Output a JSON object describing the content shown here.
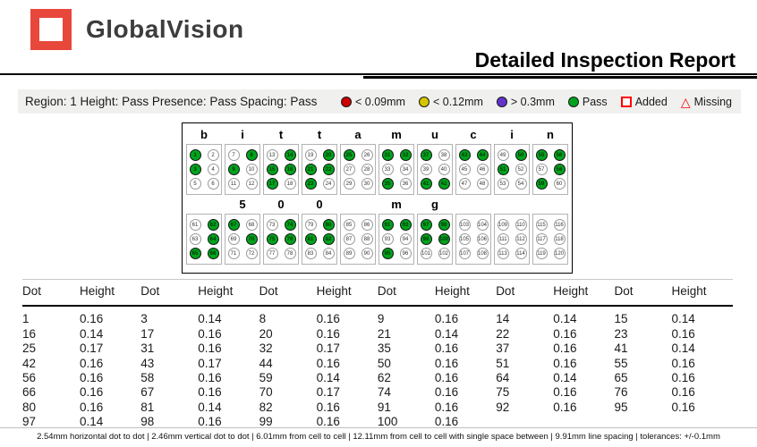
{
  "header": {
    "brand": "GlobalVision",
    "title": "Detailed Inspection Report"
  },
  "region_bar": {
    "text": "Region: 1 Height: Pass Presence: Pass Spacing: Pass",
    "legend": [
      {
        "shape": "circle",
        "color": "#cc0000",
        "label": "< 0.09mm"
      },
      {
        "shape": "circle",
        "color": "#d6c400",
        "label": "< 0.12mm"
      },
      {
        "shape": "circle",
        "color": "#6233cc",
        "label": "> 0.3mm"
      },
      {
        "shape": "circle",
        "color": "#00a41c",
        "label": "Pass"
      },
      {
        "shape": "square",
        "color": "#ff0000",
        "label": "Added"
      },
      {
        "shape": "triangle",
        "color": "#ff0000",
        "label": "Missing",
        "glyph": "△"
      }
    ]
  },
  "braille": {
    "pass_color": "#00a41c",
    "rows": [
      {
        "cells": [
          {
            "label": "b",
            "start": 1,
            "filled": [
              1,
              3
            ]
          },
          {
            "label": "i",
            "start": 7,
            "filled": [
              8,
              9
            ]
          },
          {
            "label": "t",
            "start": 13,
            "filled": [
              14,
              15,
              16,
              17
            ]
          },
          {
            "label": "t",
            "start": 19,
            "filled": [
              20,
              21,
              22,
              23
            ]
          },
          {
            "label": "a",
            "start": 25,
            "filled": [
              25
            ]
          },
          {
            "label": "m",
            "start": 31,
            "filled": [
              31,
              32,
              35
            ]
          },
          {
            "label": "u",
            "start": 37,
            "filled": [
              37,
              41,
              42
            ]
          },
          {
            "label": "c",
            "start": 43,
            "filled": [
              43,
              44
            ]
          },
          {
            "label": "i",
            "start": 49,
            "filled": [
              50,
              51
            ]
          },
          {
            "label": "n",
            "start": 55,
            "filled": [
              55,
              56,
              58,
              59
            ]
          }
        ]
      },
      {
        "cells": [
          {
            "label": "",
            "start": 61,
            "filled": [
              62,
              64,
              65,
              66
            ]
          },
          {
            "label": "5",
            "start": 67,
            "filled": [
              67,
              70
            ]
          },
          {
            "label": "0",
            "start": 73,
            "filled": [
              74,
              75,
              76
            ]
          },
          {
            "label": "0",
            "start": 79,
            "filled": [
              80,
              81,
              82
            ]
          },
          {
            "label": "",
            "start": 85,
            "filled": []
          },
          {
            "label": "m",
            "start": 91,
            "filled": [
              91,
              92,
              95
            ]
          },
          {
            "label": "g",
            "start": 97,
            "filled": [
              97,
              98,
              99,
              100
            ]
          },
          {
            "label": "",
            "start": 103,
            "filled": []
          },
          {
            "label": "",
            "start": 109,
            "filled": []
          },
          {
            "label": "",
            "start": 115,
            "filled": []
          }
        ]
      }
    ]
  },
  "table": {
    "header_pair": [
      "Dot",
      "Height"
    ],
    "pairs_per_row": 6,
    "rows": [
      [
        [
          "1",
          "0.16"
        ],
        [
          "3",
          "0.14"
        ],
        [
          "8",
          "0.16"
        ],
        [
          "9",
          "0.16"
        ],
        [
          "14",
          "0.14"
        ],
        [
          "15",
          "0.14"
        ]
      ],
      [
        [
          "16",
          "0.14"
        ],
        [
          "17",
          "0.16"
        ],
        [
          "20",
          "0.16"
        ],
        [
          "21",
          "0.14"
        ],
        [
          "22",
          "0.16"
        ],
        [
          "23",
          "0.16"
        ]
      ],
      [
        [
          "25",
          "0.17"
        ],
        [
          "31",
          "0.16"
        ],
        [
          "32",
          "0.17"
        ],
        [
          "35",
          "0.16"
        ],
        [
          "37",
          "0.16"
        ],
        [
          "41",
          "0.14"
        ]
      ],
      [
        [
          "42",
          "0.16"
        ],
        [
          "43",
          "0.17"
        ],
        [
          "44",
          "0.16"
        ],
        [
          "50",
          "0.16"
        ],
        [
          "51",
          "0.16"
        ],
        [
          "55",
          "0.16"
        ]
      ],
      [
        [
          "56",
          "0.16"
        ],
        [
          "58",
          "0.16"
        ],
        [
          "59",
          "0.14"
        ],
        [
          "62",
          "0.16"
        ],
        [
          "64",
          "0.14"
        ],
        [
          "65",
          "0.16"
        ]
      ],
      [
        [
          "66",
          "0.16"
        ],
        [
          "67",
          "0.16"
        ],
        [
          "70",
          "0.17"
        ],
        [
          "74",
          "0.16"
        ],
        [
          "75",
          "0.16"
        ],
        [
          "76",
          "0.16"
        ]
      ],
      [
        [
          "80",
          "0.16"
        ],
        [
          "81",
          "0.14"
        ],
        [
          "82",
          "0.16"
        ],
        [
          "91",
          "0.16"
        ],
        [
          "92",
          "0.16"
        ],
        [
          "95",
          "0.16"
        ]
      ],
      [
        [
          "97",
          "0.14"
        ],
        [
          "98",
          "0.16"
        ],
        [
          "99",
          "0.16"
        ],
        [
          "100",
          "0.16"
        ]
      ]
    ]
  },
  "footer": {
    "separator": "|",
    "segments": [
      "2.54mm horizontal dot to dot",
      "2.46mm vertical dot to dot",
      "6.01mm from cell to cell",
      "12.11mm from cell to cell with single space between",
      "9.91mm line spacing",
      "tolerances: +/-0.1mm"
    ]
  }
}
